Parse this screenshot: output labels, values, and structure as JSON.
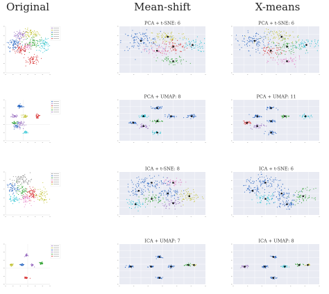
{
  "column_headers": [
    "Original",
    "Mean-shift",
    "X-means"
  ],
  "colors": {
    "palette": [
      "#1f5fbf",
      "#f28e2b",
      "#2ca02c",
      "#d62728",
      "#9467bd",
      "#8c564b",
      "#e377c2",
      "#7f7f7f",
      "#bcbd22",
      "#17becf",
      "#1a2a8c"
    ],
    "panel_bg": "#e9ebf3",
    "grid": "#ffffff"
  },
  "chart_data": [
    {
      "type": "scatter",
      "row": 0,
      "col": 0,
      "title": "",
      "legend": "top-right",
      "grid": false,
      "n_legend": 6,
      "xlim": [
        -40,
        40
      ],
      "ylim": [
        -40,
        40
      ],
      "clusters": [
        {
          "color": 4,
          "cx": -12,
          "cy": 25,
          "sx": 6,
          "sy": 4,
          "n": 60
        },
        {
          "color": 8,
          "cx": 5,
          "cy": 27,
          "sx": 8,
          "sy": 4,
          "n": 60
        },
        {
          "color": 0,
          "cx": -25,
          "cy": 10,
          "sx": 7,
          "sy": 6,
          "n": 80
        },
        {
          "color": 2,
          "cx": 10,
          "cy": 12,
          "sx": 7,
          "sy": 5,
          "n": 70
        },
        {
          "color": 9,
          "cx": 30,
          "cy": 8,
          "sx": 7,
          "sy": 5,
          "n": 60
        },
        {
          "color": 3,
          "cx": -12,
          "cy": 0,
          "sx": 7,
          "sy": 5,
          "n": 70
        },
        {
          "color": 6,
          "cx": 0,
          "cy": 5,
          "sx": 4,
          "sy": 3,
          "n": 30
        },
        {
          "color": 3,
          "cx": 10,
          "cy": -18,
          "sx": 6,
          "sy": 4,
          "n": 60
        }
      ]
    },
    {
      "type": "scatter",
      "row": 0,
      "col": 1,
      "title": "PCA + t-SNE: 6",
      "grid": true,
      "xlim": [
        -40,
        40
      ],
      "ylim": [
        -40,
        40
      ],
      "clusters": [
        {
          "color": 0,
          "cx": -20,
          "cy": 15,
          "sx": 9,
          "sy": 8,
          "n": 110
        },
        {
          "color": 8,
          "cx": 5,
          "cy": 22,
          "sx": 9,
          "sy": 6,
          "n": 70
        },
        {
          "color": 3,
          "cx": 10,
          "cy": 5,
          "sx": 7,
          "sy": 6,
          "n": 70
        },
        {
          "color": 9,
          "cx": 28,
          "cy": 8,
          "sx": 7,
          "sy": 6,
          "n": 60
        },
        {
          "color": 6,
          "cx": -5,
          "cy": -2,
          "sx": 6,
          "sy": 5,
          "n": 50
        },
        {
          "color": 2,
          "cx": 10,
          "cy": -20,
          "sx": 7,
          "sy": 4,
          "n": 50
        }
      ]
    },
    {
      "type": "scatter",
      "row": 0,
      "col": 2,
      "title": "PCA + t-SNE: 6",
      "grid": true,
      "xlim": [
        -40,
        40
      ],
      "ylim": [
        -40,
        40
      ],
      "clusters": [
        {
          "color": 0,
          "cx": -20,
          "cy": 15,
          "sx": 9,
          "sy": 8,
          "n": 110
        },
        {
          "color": 8,
          "cx": 5,
          "cy": 22,
          "sx": 9,
          "sy": 6,
          "n": 70
        },
        {
          "color": 2,
          "cx": 10,
          "cy": 5,
          "sx": 7,
          "sy": 6,
          "n": 70
        },
        {
          "color": 9,
          "cx": 28,
          "cy": 8,
          "sx": 7,
          "sy": 6,
          "n": 60
        },
        {
          "color": 3,
          "cx": -5,
          "cy": -2,
          "sx": 6,
          "sy": 5,
          "n": 50
        },
        {
          "color": 6,
          "cx": 10,
          "cy": -20,
          "sx": 7,
          "sy": 4,
          "n": 50
        }
      ]
    },
    {
      "type": "scatter",
      "row": 1,
      "col": 0,
      "title": "",
      "legend": "top-right",
      "grid": false,
      "n_legend": 6,
      "xlim": [
        -10,
        15
      ],
      "ylim": [
        -10,
        15
      ],
      "clusters": [
        {
          "color": 0,
          "cx": -2,
          "cy": 11,
          "sx": 0.8,
          "sy": 0.6,
          "n": 40
        },
        {
          "color": 4,
          "cx": -5,
          "cy": 5,
          "sx": 0.8,
          "sy": 0.5,
          "n": 30
        },
        {
          "color": 3,
          "cx": 8,
          "cy": 5,
          "sx": 0.6,
          "sy": 0.6,
          "n": 30
        },
        {
          "color": 8,
          "cx": 1,
          "cy": 5,
          "sx": 0.7,
          "sy": 0.5,
          "n": 25
        },
        {
          "color": 2,
          "cx": -5,
          "cy": 1,
          "sx": 0.8,
          "sy": 0.5,
          "n": 30
        },
        {
          "color": 4,
          "cx": -2,
          "cy": 0,
          "sx": 1.2,
          "sy": 1.2,
          "n": 40
        },
        {
          "color": 0,
          "cx": -4,
          "cy": -1,
          "sx": 0.8,
          "sy": 1.0,
          "n": 25
        },
        {
          "color": 9,
          "cx": 1,
          "cy": -5,
          "sx": 0.6,
          "sy": 0.5,
          "n": 20
        }
      ]
    },
    {
      "type": "scatter",
      "row": 1,
      "col": 1,
      "title": "PCA + UMAP: 8",
      "grid": true,
      "xlim": [
        -10,
        15
      ],
      "ylim": [
        -10,
        15
      ],
      "clusters": [
        {
          "color": 0,
          "cx": 1,
          "cy": 10,
          "sx": 0.7,
          "sy": 0.5,
          "n": 30
        },
        {
          "color": 9,
          "cx": -3,
          "cy": 5,
          "sx": 0.7,
          "sy": 0.5,
          "n": 30
        },
        {
          "color": 0,
          "cx": 5,
          "cy": 5,
          "sx": 0.7,
          "sy": 0.5,
          "n": 25
        },
        {
          "color": 0,
          "cx": 11,
          "cy": 5,
          "sx": 0.7,
          "sy": 0.6,
          "n": 30
        },
        {
          "color": 2,
          "cx": 1,
          "cy": 2,
          "sx": 0.8,
          "sy": 0.5,
          "n": 25
        },
        {
          "color": 0,
          "cx": -6,
          "cy": 1,
          "sx": 0.7,
          "sy": 0.5,
          "n": 25
        },
        {
          "color": 4,
          "cx": -3,
          "cy": -1,
          "sx": 1.0,
          "sy": 0.8,
          "n": 30
        },
        {
          "color": 9,
          "cx": 1,
          "cy": -5,
          "sx": 0.7,
          "sy": 0.5,
          "n": 25
        }
      ]
    },
    {
      "type": "scatter",
      "row": 1,
      "col": 2,
      "title": "PCA + UMAP: 11",
      "grid": true,
      "xlim": [
        -10,
        15
      ],
      "ylim": [
        -10,
        15
      ],
      "clusters": [
        {
          "color": 0,
          "cx": 1,
          "cy": 10,
          "sx": 0.7,
          "sy": 0.5,
          "n": 30
        },
        {
          "color": 0,
          "cx": -3,
          "cy": 5,
          "sx": 0.7,
          "sy": 0.5,
          "n": 30
        },
        {
          "color": 2,
          "cx": 5,
          "cy": 5,
          "sx": 0.7,
          "sy": 0.5,
          "n": 25
        },
        {
          "color": 9,
          "cx": 11,
          "cy": 5,
          "sx": 0.7,
          "sy": 0.6,
          "n": 30
        },
        {
          "color": 3,
          "cx": -6,
          "cy": 1,
          "sx": 0.7,
          "sy": 0.5,
          "n": 25
        },
        {
          "color": 0,
          "cx": 1,
          "cy": 2,
          "sx": 0.8,
          "sy": 0.5,
          "n": 25
        },
        {
          "color": 4,
          "cx": -3,
          "cy": -1,
          "sx": 1.0,
          "sy": 0.8,
          "n": 30
        },
        {
          "color": 0,
          "cx": 1,
          "cy": -5,
          "sx": 0.7,
          "sy": 0.5,
          "n": 25
        }
      ]
    },
    {
      "type": "scatter",
      "row": 2,
      "col": 0,
      "title": "",
      "legend": "top-right",
      "grid": false,
      "n_legend": 6,
      "xlim": [
        -40,
        40
      ],
      "ylim": [
        -40,
        40
      ],
      "clusters": [
        {
          "color": 7,
          "cx": -10,
          "cy": 25,
          "sx": 9,
          "sy": 5,
          "n": 70
        },
        {
          "color": 0,
          "cx": -28,
          "cy": 10,
          "sx": 5,
          "sy": 5,
          "n": 50
        },
        {
          "color": 2,
          "cx": -10,
          "cy": 5,
          "sx": 5,
          "sy": 5,
          "n": 50
        },
        {
          "color": 6,
          "cx": -5,
          "cy": -10,
          "sx": 5,
          "sy": 5,
          "n": 50
        },
        {
          "color": 3,
          "cx": 7,
          "cy": 0,
          "sx": 5,
          "sy": 6,
          "n": 70
        },
        {
          "color": 8,
          "cx": 25,
          "cy": -5,
          "sx": 6,
          "sy": 7,
          "n": 60
        },
        {
          "color": 9,
          "cx": -25,
          "cy": -10,
          "sx": 4,
          "sy": 4,
          "n": 40
        }
      ]
    },
    {
      "type": "scatter",
      "row": 2,
      "col": 1,
      "title": "ICA + t-SNE: 8",
      "grid": true,
      "xlim": [
        -40,
        40
      ],
      "ylim": [
        -40,
        40
      ],
      "clusters": [
        {
          "color": 0,
          "cx": -10,
          "cy": 20,
          "sx": 10,
          "sy": 6,
          "n": 90
        },
        {
          "color": 0,
          "cx": -22,
          "cy": 5,
          "sx": 5,
          "sy": 5,
          "n": 40
        },
        {
          "color": 2,
          "cx": -10,
          "cy": -10,
          "sx": 5,
          "sy": 5,
          "n": 50
        },
        {
          "color": 0,
          "cx": 5,
          "cy": 0,
          "sx": 6,
          "sy": 6,
          "n": 60
        },
        {
          "color": 8,
          "cx": 25,
          "cy": -5,
          "sx": 5,
          "sy": 7,
          "n": 60
        },
        {
          "color": 9,
          "cx": -25,
          "cy": -20,
          "sx": 4,
          "sy": 4,
          "n": 40
        },
        {
          "color": 6,
          "cx": 10,
          "cy": 20,
          "sx": 5,
          "sy": 5,
          "n": 40
        },
        {
          "color": 4,
          "cx": 10,
          "cy": -18,
          "sx": 5,
          "sy": 4,
          "n": 40
        }
      ]
    },
    {
      "type": "scatter",
      "row": 2,
      "col": 2,
      "title": "ICA + t-SNE: 6",
      "grid": true,
      "xlim": [
        -40,
        40
      ],
      "ylim": [
        -40,
        40
      ],
      "clusters": [
        {
          "color": 0,
          "cx": -10,
          "cy": 20,
          "sx": 10,
          "sy": 6,
          "n": 90
        },
        {
          "color": 0,
          "cx": -22,
          "cy": 5,
          "sx": 5,
          "sy": 5,
          "n": 40
        },
        {
          "color": 9,
          "cx": -10,
          "cy": -10,
          "sx": 5,
          "sy": 5,
          "n": 50
        },
        {
          "color": 0,
          "cx": 5,
          "cy": 0,
          "sx": 6,
          "sy": 6,
          "n": 60
        },
        {
          "color": 2,
          "cx": 25,
          "cy": -5,
          "sx": 5,
          "sy": 7,
          "n": 60
        },
        {
          "color": 0,
          "cx": 10,
          "cy": -20,
          "sx": 5,
          "sy": 4,
          "n": 50
        }
      ]
    },
    {
      "type": "scatter",
      "row": 3,
      "col": 0,
      "title": "",
      "legend": "top-right",
      "grid": false,
      "n_legend": 6,
      "xlim": [
        -15,
        15
      ],
      "ylim": [
        -10,
        15
      ],
      "clusters": [
        {
          "color": 4,
          "cx": -1,
          "cy": 8,
          "sx": 0.5,
          "sy": 0.4,
          "n": 25
        },
        {
          "color": 8,
          "cx": -11,
          "cy": 2,
          "sx": 0.7,
          "sy": 0.4,
          "n": 25
        },
        {
          "color": 0,
          "cx": -4,
          "cy": 2,
          "sx": 0.6,
          "sy": 0.4,
          "n": 25
        },
        {
          "color": 4,
          "cx": 3,
          "cy": 2,
          "sx": 0.6,
          "sy": 0.4,
          "n": 25
        },
        {
          "color": 2,
          "cx": 9,
          "cy": 3,
          "sx": 0.7,
          "sy": 0.4,
          "n": 25
        },
        {
          "color": 3,
          "cx": -1,
          "cy": -6,
          "sx": 0.6,
          "sy": 0.3,
          "n": 25
        }
      ]
    },
    {
      "type": "scatter",
      "row": 3,
      "col": 1,
      "title": "ICA + UMAP: 7",
      "grid": true,
      "xlim": [
        -15,
        15
      ],
      "ylim": [
        -10,
        15
      ],
      "clusters": [
        {
          "color": 0,
          "cx": -1,
          "cy": 7,
          "sx": 0.5,
          "sy": 0.4,
          "n": 25
        },
        {
          "color": 0,
          "cx": -11,
          "cy": 1,
          "sx": 0.7,
          "sy": 0.4,
          "n": 25
        },
        {
          "color": 0,
          "cx": -4,
          "cy": 1,
          "sx": 0.6,
          "sy": 0.4,
          "n": 25
        },
        {
          "color": 0,
          "cx": 3,
          "cy": 1,
          "sx": 0.6,
          "sy": 0.4,
          "n": 25
        },
        {
          "color": 2,
          "cx": 9,
          "cy": 2,
          "sx": 0.7,
          "sy": 0.4,
          "n": 25
        },
        {
          "color": 8,
          "cx": 11,
          "cy": 2,
          "sx": 0.4,
          "sy": 0.3,
          "n": 10
        },
        {
          "color": 0,
          "cx": -1,
          "cy": -6,
          "sx": 0.6,
          "sy": 0.3,
          "n": 25
        }
      ]
    },
    {
      "type": "scatter",
      "row": 3,
      "col": 2,
      "title": "ICA + UMAP: 8",
      "grid": true,
      "xlim": [
        -15,
        15
      ],
      "ylim": [
        -10,
        15
      ],
      "clusters": [
        {
          "color": 0,
          "cx": -1,
          "cy": 7,
          "sx": 0.5,
          "sy": 0.4,
          "n": 25
        },
        {
          "color": 4,
          "cx": -11,
          "cy": 1,
          "sx": 0.7,
          "sy": 0.4,
          "n": 25
        },
        {
          "color": 0,
          "cx": -4,
          "cy": 1,
          "sx": 0.6,
          "sy": 0.4,
          "n": 25
        },
        {
          "color": 9,
          "cx": 3,
          "cy": 1,
          "sx": 0.6,
          "sy": 0.4,
          "n": 25
        },
        {
          "color": 2,
          "cx": 8,
          "cy": 2,
          "sx": 0.6,
          "sy": 0.4,
          "n": 20
        },
        {
          "color": 8,
          "cx": 11,
          "cy": 2,
          "sx": 0.5,
          "sy": 0.3,
          "n": 15
        },
        {
          "color": 0,
          "cx": -1,
          "cy": -6,
          "sx": 0.6,
          "sy": 0.3,
          "n": 25
        }
      ]
    }
  ]
}
